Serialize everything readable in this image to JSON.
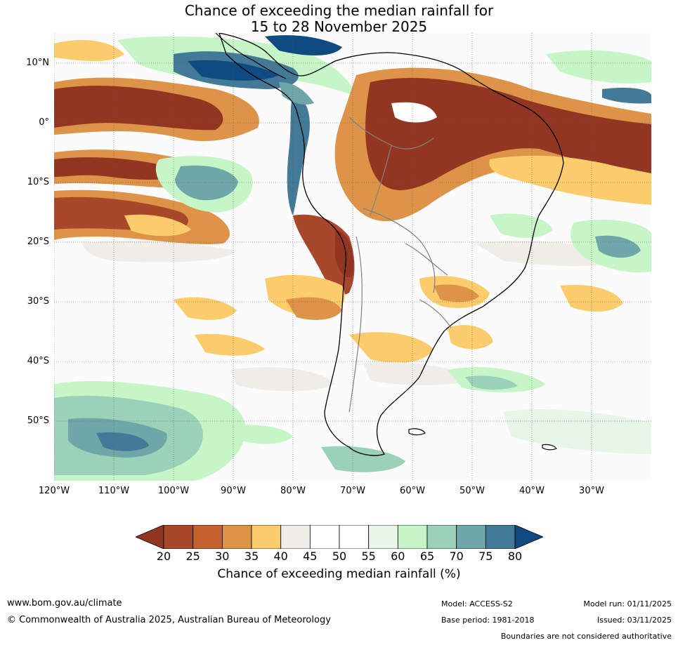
{
  "title": {
    "line1": "Chance of exceeding the median rainfall for",
    "line2": "15 to 28 November 2025"
  },
  "map": {
    "latitude_labels": [
      "10°N",
      "0°",
      "10°S",
      "20°S",
      "30°S",
      "40°S",
      "50°S"
    ],
    "longitude_labels": [
      "120°W",
      "110°W",
      "100°W",
      "90°W",
      "80°W",
      "70°W",
      "60°W",
      "50°W",
      "40°W",
      "30°W"
    ],
    "region": "South America"
  },
  "colorbar": {
    "title": "Chance of exceeding median rainfall (%)",
    "labels": [
      "20",
      "25",
      "30",
      "35",
      "40",
      "45",
      "50",
      "55",
      "60",
      "65",
      "70",
      "75",
      "80"
    ],
    "colors": [
      "#a8472a",
      "#c4612f",
      "#de9448",
      "#fbcc6c",
      "#f0ede9",
      "#ffffff",
      "#ffffff",
      "#e8f5e9",
      "#c6f5c8",
      "#9ad1b8",
      "#6fa6a8",
      "#437a98"
    ],
    "under_color": "#933621",
    "over_color": "#0f4a80"
  },
  "footer": {
    "website": "www.bom.gov.au/climate",
    "copyright": "© Commonwealth of Australia 2025, Australian Bureau of Meteorology",
    "model": "Model: ACCESS-S2",
    "base_period": "Base period: 1981-2018",
    "model_run": "Model run: 01/11/2025",
    "issued": "Issued: 03/11/2025",
    "disclaimer": "Boundaries are not considered authoritative"
  }
}
